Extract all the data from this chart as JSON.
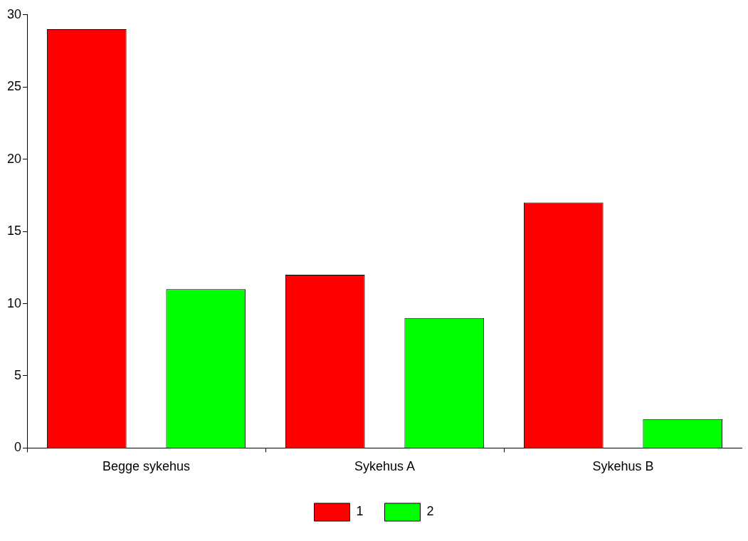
{
  "chart_data": {
    "type": "bar",
    "categories": [
      "Begge sykehus",
      "Sykehus A",
      "Sykehus B"
    ],
    "series": [
      {
        "name": "1",
        "color": "#ff0000",
        "values": [
          29,
          12,
          17
        ]
      },
      {
        "name": "2",
        "color": "#00ff00",
        "values": [
          11,
          9,
          2
        ]
      }
    ],
    "ylim": [
      0,
      30
    ],
    "yticks": [
      0,
      5,
      10,
      15,
      20,
      25,
      30
    ],
    "grid": false,
    "legend": "bottom"
  }
}
